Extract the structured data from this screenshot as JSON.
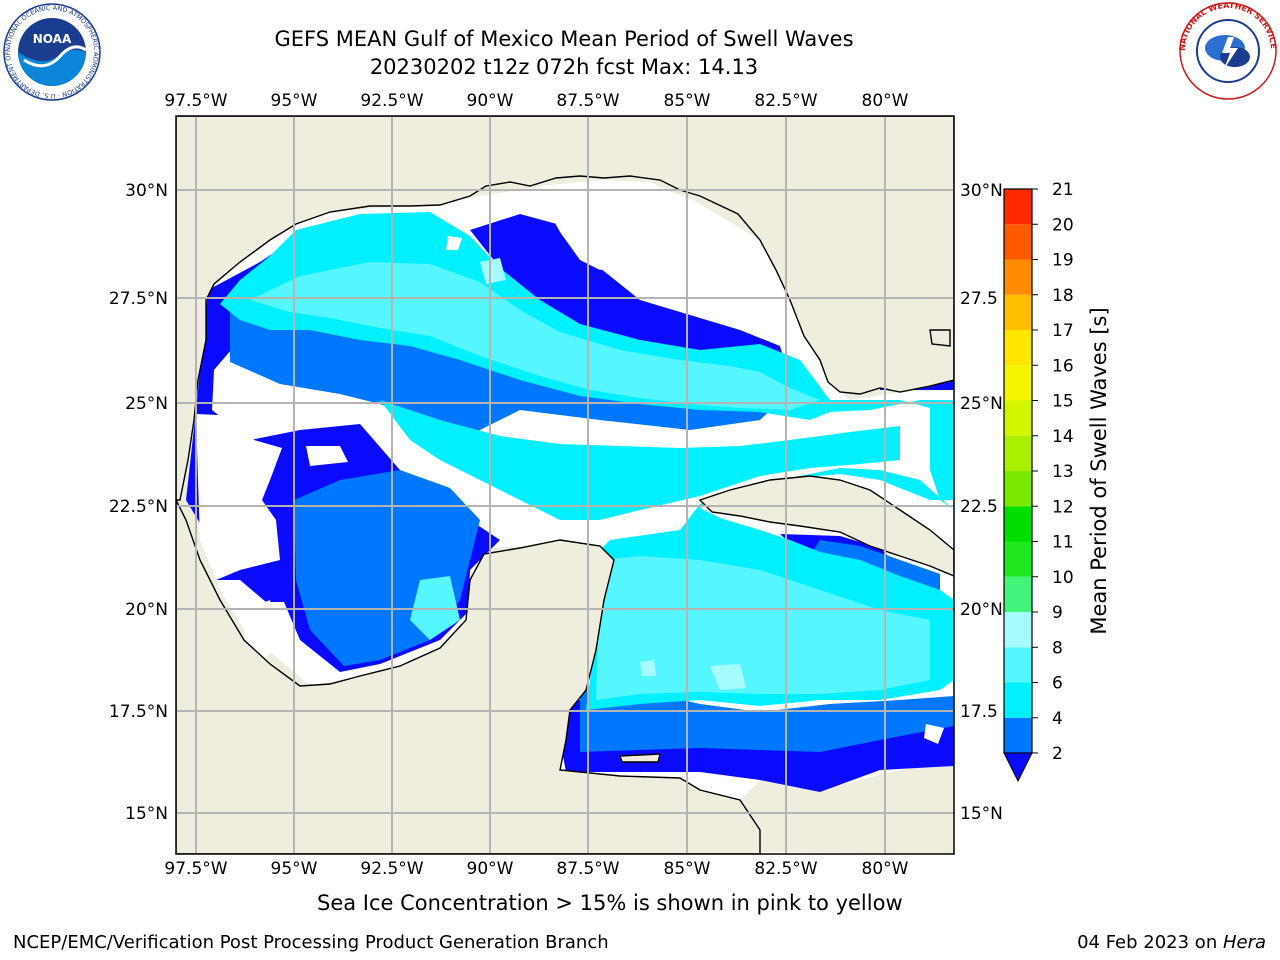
{
  "header": {
    "title_line1": "GEFS MEAN Gulf of Mexico Mean Period of Swell Waves",
    "title_line2": "20230202 t12z 072h fcst   Max: 14.13",
    "left_logo_text": "NOAA",
    "left_logo_ring": "NATIONAL OCEANIC AND ATMOSPHERIC ADMINISTRATION · U.S. DEPARTMENT OF COMMERCE",
    "right_logo_ring": "NATIONAL WEATHER SERVICE"
  },
  "map": {
    "lon_labels": [
      "97.5°W",
      "95°W",
      "92.5°W",
      "90°W",
      "87.5°W",
      "85°W",
      "82.5°W",
      "80°W"
    ],
    "lat_labels": [
      "15°N",
      "17.5°N",
      "20°N",
      "22.5°N",
      "25°N",
      "27.5°N",
      "30°N"
    ],
    "lat_labels_right": [
      "15°N",
      "17.5",
      "20°N",
      "22.5",
      "25°N",
      "27.5",
      "30°N"
    ],
    "land_color": "#efedde",
    "grid_color": "#b4b4b4"
  },
  "colorbar": {
    "label": "Mean Period of Swell Waves [s]",
    "ticks": [
      "2",
      "4",
      "6",
      "8",
      "9",
      "10",
      "11",
      "12",
      "13",
      "14",
      "15",
      "16",
      "17",
      "18",
      "19",
      "20",
      "21"
    ],
    "colors": [
      "#0a0aff",
      "#0077ff",
      "#00f0ff",
      "#56f6ff",
      "#a6fbff",
      "#42f578",
      "#1ee81e",
      "#00e000",
      "#7be800",
      "#a8f000",
      "#d2f500",
      "#f5f500",
      "#ffe600",
      "#ffbf00",
      "#ff8c00",
      "#ff5a00",
      "#ff2800",
      "#ff0000"
    ]
  },
  "footer": {
    "ice_note": "Sea Ice Concentration > 15% is shown in pink to yellow",
    "credit": "NCEP/EMC/Verification Post Processing Product Generation Branch",
    "stamp_date": "04 Feb 2023 on ",
    "stamp_host": "Hera"
  }
}
